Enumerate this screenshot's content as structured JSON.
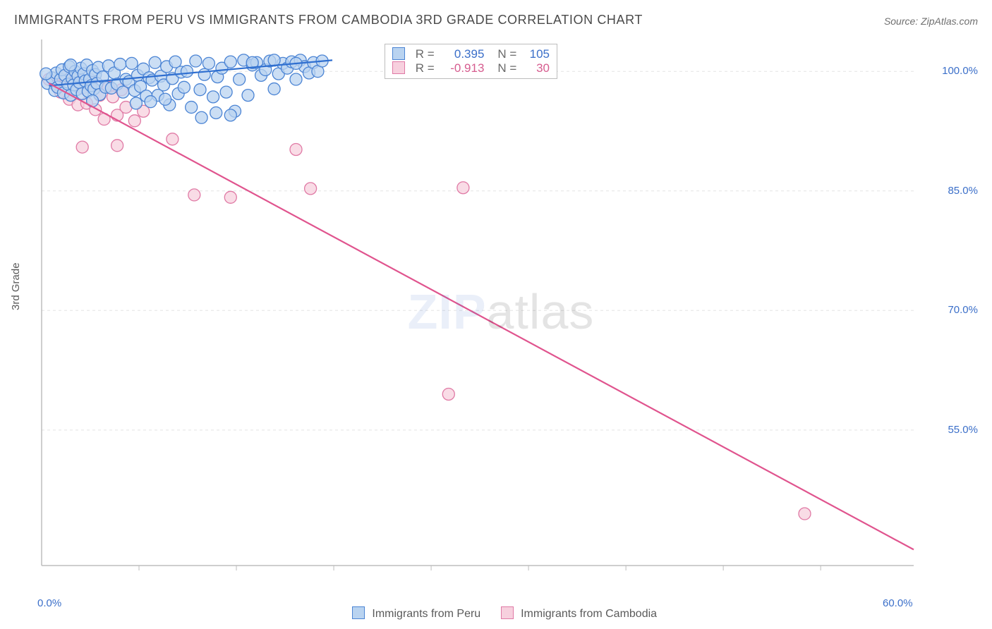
{
  "title": "IMMIGRANTS FROM PERU VS IMMIGRANTS FROM CAMBODIA 3RD GRADE CORRELATION CHART",
  "source_label": "Source: ZipAtlas.com",
  "ylabel": "3rd Grade",
  "watermark_zip": "ZIP",
  "watermark_rest": "atlas",
  "chart": {
    "type": "scatter",
    "background_color": "#ffffff",
    "axis_color": "#bdbdbd",
    "grid_color": "#e3e3e3",
    "grid_dash": "4 4",
    "tick_label_color": "#3b6fc9",
    "xlim": [
      0,
      60
    ],
    "ylim": [
      38,
      104
    ],
    "x_ticks": [
      0,
      60
    ],
    "x_tick_labels": [
      "0.0%",
      "60.0%"
    ],
    "x_minor_ticks": [
      6.7,
      13.4,
      20.1,
      26.8,
      33.5,
      40.2,
      46.9,
      53.6
    ],
    "y_ticks": [
      55,
      70,
      85,
      100
    ],
    "y_tick_labels": [
      "55.0%",
      "70.0%",
      "85.0%",
      "100.0%"
    ],
    "marker_radius": 8.5,
    "marker_stroke_width": 1.3,
    "trend_line_width": 2.2,
    "series": {
      "peru": {
        "label": "Immigrants from Peru",
        "fill": "#b9d3f0",
        "stroke": "#4b84d4",
        "line_color": "#2f6fd0",
        "r_value": "0.395",
        "n_value": "105",
        "trend": {
          "x1": 0.5,
          "y1": 98.2,
          "x2": 20.0,
          "y2": 101.4
        },
        "points": [
          [
            0.4,
            98.5
          ],
          [
            0.7,
            99.2
          ],
          [
            0.9,
            97.6
          ],
          [
            1.0,
            99.8
          ],
          [
            1.1,
            98.0
          ],
          [
            1.3,
            99.0
          ],
          [
            1.4,
            100.2
          ],
          [
            1.5,
            97.3
          ],
          [
            1.6,
            99.5
          ],
          [
            1.8,
            98.4
          ],
          [
            1.9,
            100.6
          ],
          [
            2.0,
            97.0
          ],
          [
            2.1,
            99.1
          ],
          [
            2.2,
            98.3
          ],
          [
            2.3,
            100.0
          ],
          [
            2.4,
            97.7
          ],
          [
            2.5,
            99.4
          ],
          [
            2.6,
            98.6
          ],
          [
            2.7,
            100.4
          ],
          [
            2.8,
            97.2
          ],
          [
            2.9,
            99.7
          ],
          [
            3.0,
            98.8
          ],
          [
            3.1,
            100.8
          ],
          [
            3.2,
            97.5
          ],
          [
            3.3,
            99.0
          ],
          [
            3.4,
            98.2
          ],
          [
            3.5,
            100.1
          ],
          [
            3.6,
            97.8
          ],
          [
            3.7,
            99.6
          ],
          [
            3.8,
            98.5
          ],
          [
            3.9,
            100.5
          ],
          [
            4.0,
            97.1
          ],
          [
            4.2,
            99.3
          ],
          [
            4.4,
            98.0
          ],
          [
            4.6,
            100.7
          ],
          [
            4.8,
            97.9
          ],
          [
            5.0,
            99.8
          ],
          [
            5.2,
            98.4
          ],
          [
            5.4,
            100.9
          ],
          [
            5.6,
            97.4
          ],
          [
            5.8,
            99.0
          ],
          [
            6.0,
            98.7
          ],
          [
            6.2,
            101.0
          ],
          [
            6.4,
            97.6
          ],
          [
            6.6,
            99.5
          ],
          [
            6.8,
            98.1
          ],
          [
            7.0,
            100.3
          ],
          [
            7.2,
            96.9
          ],
          [
            7.4,
            99.2
          ],
          [
            7.6,
            98.9
          ],
          [
            7.8,
            101.1
          ],
          [
            8.0,
            97.0
          ],
          [
            8.2,
            99.4
          ],
          [
            8.4,
            98.3
          ],
          [
            8.6,
            100.6
          ],
          [
            8.8,
            95.8
          ],
          [
            9.0,
            99.1
          ],
          [
            9.2,
            101.2
          ],
          [
            9.4,
            97.2
          ],
          [
            9.6,
            99.9
          ],
          [
            9.8,
            98.0
          ],
          [
            10.0,
            100.0
          ],
          [
            10.3,
            95.5
          ],
          [
            10.6,
            101.3
          ],
          [
            10.9,
            97.7
          ],
          [
            11.2,
            99.6
          ],
          [
            11.5,
            101.0
          ],
          [
            11.8,
            96.8
          ],
          [
            12.1,
            99.3
          ],
          [
            12.4,
            100.4
          ],
          [
            12.7,
            97.4
          ],
          [
            13.0,
            101.2
          ],
          [
            13.3,
            95.0
          ],
          [
            13.6,
            99.0
          ],
          [
            13.9,
            101.4
          ],
          [
            14.2,
            97.0
          ],
          [
            14.5,
            100.8
          ],
          [
            14.8,
            101.1
          ],
          [
            15.1,
            99.5
          ],
          [
            15.4,
            100.2
          ],
          [
            15.7,
            101.3
          ],
          [
            16.0,
            97.8
          ],
          [
            16.3,
            99.7
          ],
          [
            16.6,
            101.0
          ],
          [
            16.9,
            100.4
          ],
          [
            17.2,
            101.2
          ],
          [
            17.5,
            99.0
          ],
          [
            17.8,
            101.4
          ],
          [
            18.1,
            100.6
          ],
          [
            18.4,
            99.8
          ],
          [
            18.7,
            101.1
          ],
          [
            19.0,
            100.0
          ],
          [
            19.3,
            101.3
          ],
          [
            12.0,
            94.8
          ],
          [
            13.0,
            94.5
          ],
          [
            6.5,
            96.0
          ],
          [
            7.5,
            96.2
          ],
          [
            8.5,
            96.5
          ],
          [
            3.5,
            96.3
          ],
          [
            2.0,
            100.8
          ],
          [
            0.3,
            99.7
          ],
          [
            11.0,
            94.2
          ],
          [
            14.5,
            101.1
          ],
          [
            16.0,
            101.4
          ],
          [
            17.5,
            101.0
          ]
        ]
      },
      "cambodia": {
        "label": "Immigrants from Cambodia",
        "fill": "#f7d0de",
        "stroke": "#e07aa5",
        "line_color": "#e0548e",
        "r_value": "-0.913",
        "n_value": "30",
        "trend": {
          "x1": 0.5,
          "y1": 98.5,
          "x2": 60.0,
          "y2": 40.0
        },
        "points": [
          [
            0.5,
            99.0
          ],
          [
            1.0,
            98.2
          ],
          [
            1.3,
            97.4
          ],
          [
            1.6,
            99.3
          ],
          [
            1.9,
            96.5
          ],
          [
            2.2,
            98.8
          ],
          [
            2.5,
            95.8
          ],
          [
            2.8,
            97.9
          ],
          [
            3.1,
            96.0
          ],
          [
            3.4,
            98.6
          ],
          [
            3.7,
            95.2
          ],
          [
            4.0,
            97.0
          ],
          [
            4.3,
            94.0
          ],
          [
            4.6,
            98.0
          ],
          [
            4.9,
            96.8
          ],
          [
            5.2,
            94.5
          ],
          [
            5.5,
            97.7
          ],
          [
            5.8,
            95.5
          ],
          [
            6.4,
            93.8
          ],
          [
            7.0,
            95.0
          ],
          [
            2.8,
            90.5
          ],
          [
            5.2,
            90.7
          ],
          [
            9.0,
            91.5
          ],
          [
            10.5,
            84.5
          ],
          [
            13.0,
            84.2
          ],
          [
            17.5,
            90.2
          ],
          [
            18.5,
            85.3
          ],
          [
            29.0,
            85.4
          ],
          [
            28.0,
            59.5
          ],
          [
            52.5,
            44.5
          ]
        ]
      }
    },
    "bottom_legend_swatch_border": {
      "peru": "#4b84d4",
      "cambodia": "#e07aa5"
    }
  },
  "stat_legend": {
    "r_label": "R =",
    "n_label": "N ="
  }
}
